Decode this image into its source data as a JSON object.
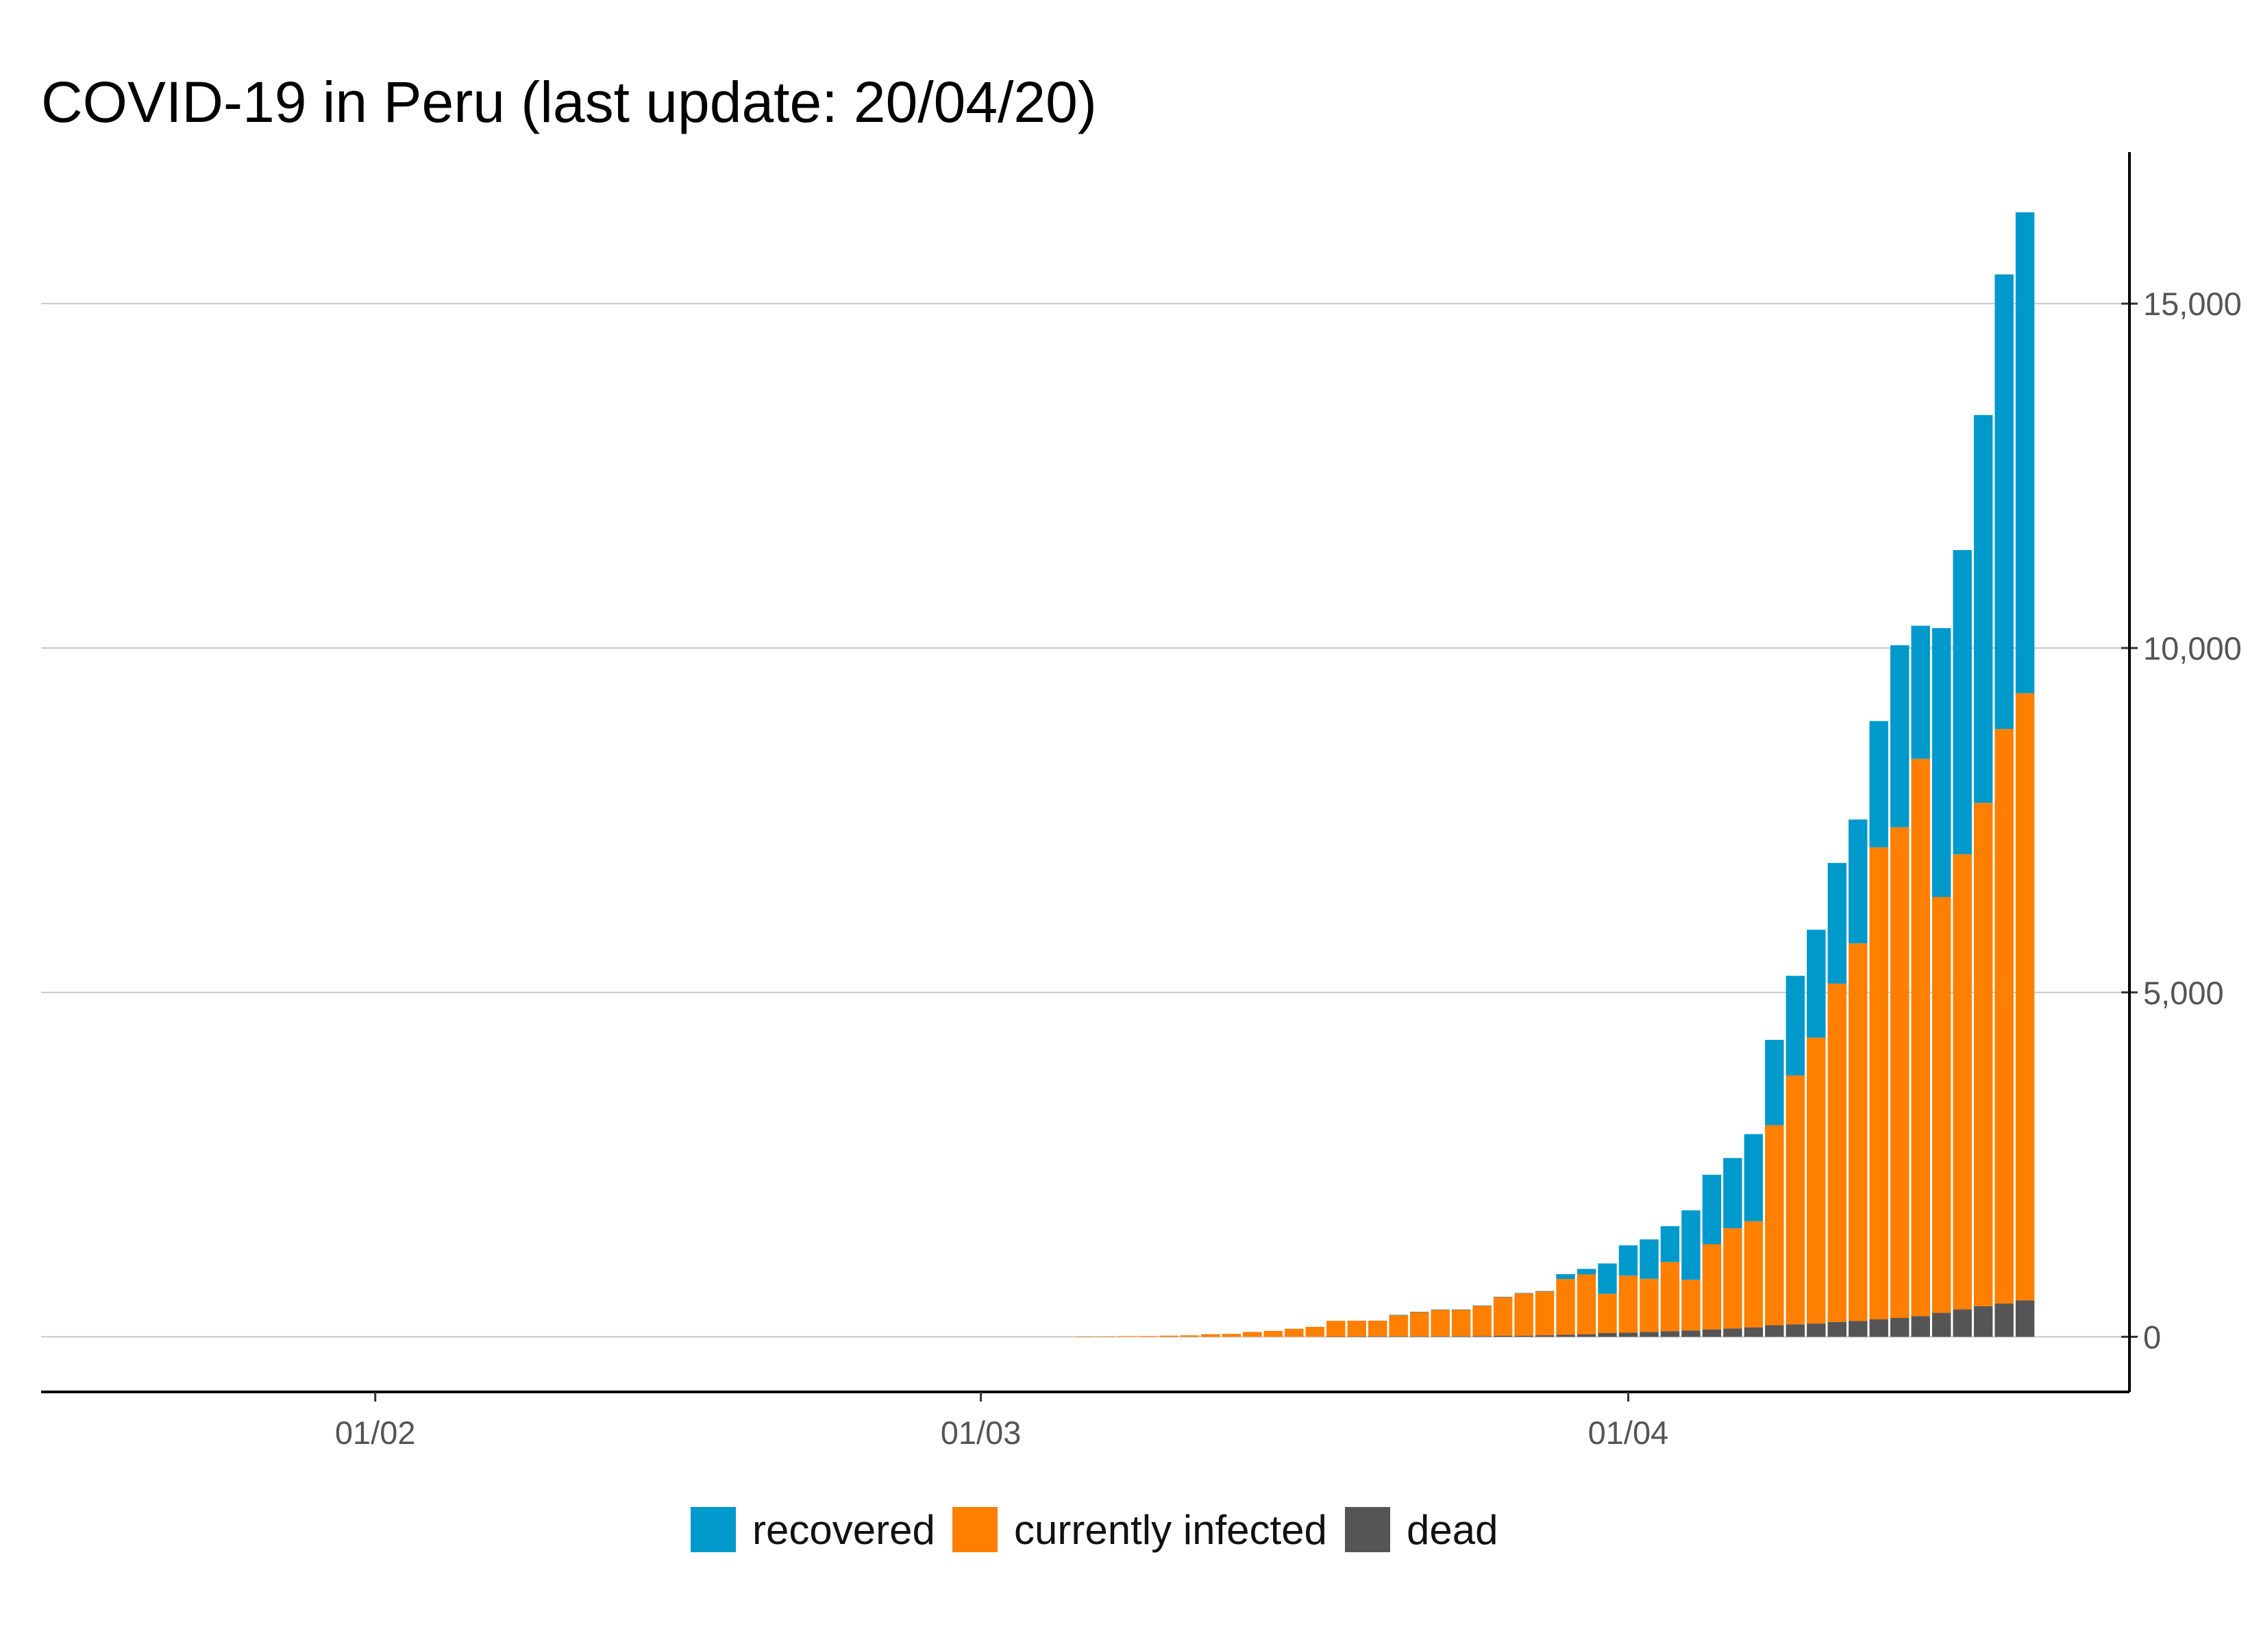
{
  "chart_data": {
    "type": "bar",
    "stacked": true,
    "title": "COVID-19 in Peru (last update: 20/04/20)",
    "xlabel": "",
    "ylabel": "",
    "x_tick_labels": [
      {
        "date": "2020-02-01",
        "label": "01/02"
      },
      {
        "date": "2020-03-01",
        "label": "01/03"
      },
      {
        "date": "2020-04-01",
        "label": "01/04"
      }
    ],
    "y_ticks": [
      0,
      5000,
      10000,
      15000
    ],
    "y_tick_labels": [
      "0",
      "5,000",
      "10,000",
      "15,000"
    ],
    "ylim": [
      -800,
      17200
    ],
    "xlim": [
      "2020-01-16",
      "2020-04-25"
    ],
    "y_axis_position": "right",
    "grid": "horizontal",
    "legend_position": "bottom",
    "x": [
      "2020-03-06",
      "2020-03-07",
      "2020-03-08",
      "2020-03-09",
      "2020-03-10",
      "2020-03-11",
      "2020-03-12",
      "2020-03-13",
      "2020-03-14",
      "2020-03-15",
      "2020-03-16",
      "2020-03-17",
      "2020-03-18",
      "2020-03-19",
      "2020-03-20",
      "2020-03-21",
      "2020-03-22",
      "2020-03-23",
      "2020-03-24",
      "2020-03-25",
      "2020-03-26",
      "2020-03-27",
      "2020-03-28",
      "2020-03-29",
      "2020-03-30",
      "2020-03-31",
      "2020-04-01",
      "2020-04-02",
      "2020-04-03",
      "2020-04-04",
      "2020-04-05",
      "2020-04-06",
      "2020-04-07",
      "2020-04-08",
      "2020-04-09",
      "2020-04-10",
      "2020-04-11",
      "2020-04-12",
      "2020-04-13",
      "2020-04-14",
      "2020-04-15",
      "2020-04-16",
      "2020-04-17",
      "2020-04-18",
      "2020-04-19",
      "2020-04-20"
    ],
    "series": [
      {
        "name": "dead",
        "color": "#555555",
        "values": [
          0,
          0,
          0,
          0,
          0,
          0,
          0,
          0,
          0,
          0,
          0,
          0,
          2,
          3,
          5,
          5,
          5,
          7,
          9,
          11,
          16,
          18,
          24,
          30,
          38,
          55,
          61,
          73,
          83,
          92,
          107,
          121,
          138,
          169,
          181,
          193,
          216,
          230,
          254,
          274,
          300,
          348,
          400,
          445,
          484,
          530
        ]
      },
      {
        "name": "currently infected",
        "color": "#ff7f00",
        "values": [
          1,
          6,
          9,
          11,
          17,
          22,
          38,
          43,
          71,
          86,
          117,
          145,
          230,
          231,
          230,
          313,
          358,
          388,
          387,
          443,
          564,
          618,
          640,
          810,
          868,
          569,
          827,
          769,
          1003,
          736,
          1236,
          1455,
          1540,
          2904,
          3614,
          4150,
          4912,
          5482,
          6853,
          7124,
          8091,
          6037,
          6605,
          7306,
          8340,
          8813
        ]
      },
      {
        "name": "recovered",
        "color": "#0099cc",
        "values": [
          0,
          0,
          0,
          0,
          0,
          0,
          0,
          0,
          0,
          0,
          0,
          0,
          0,
          0,
          0,
          1,
          1,
          1,
          1,
          1,
          1,
          1,
          1,
          70,
          80,
          441,
          440,
          572,
          520,
          1009,
          1010,
          1020,
          1265,
          1238,
          1446,
          1567,
          1752,
          1798,
          1833,
          2642,
          1932,
          3904,
          4417,
          5631,
          6600,
          6982
        ]
      }
    ]
  },
  "legend": {
    "items": [
      {
        "label": "recovered",
        "color": "#0099cc"
      },
      {
        "label": "currently infected",
        "color": "#ff7f00"
      },
      {
        "label": "dead",
        "color": "#555555"
      }
    ]
  }
}
